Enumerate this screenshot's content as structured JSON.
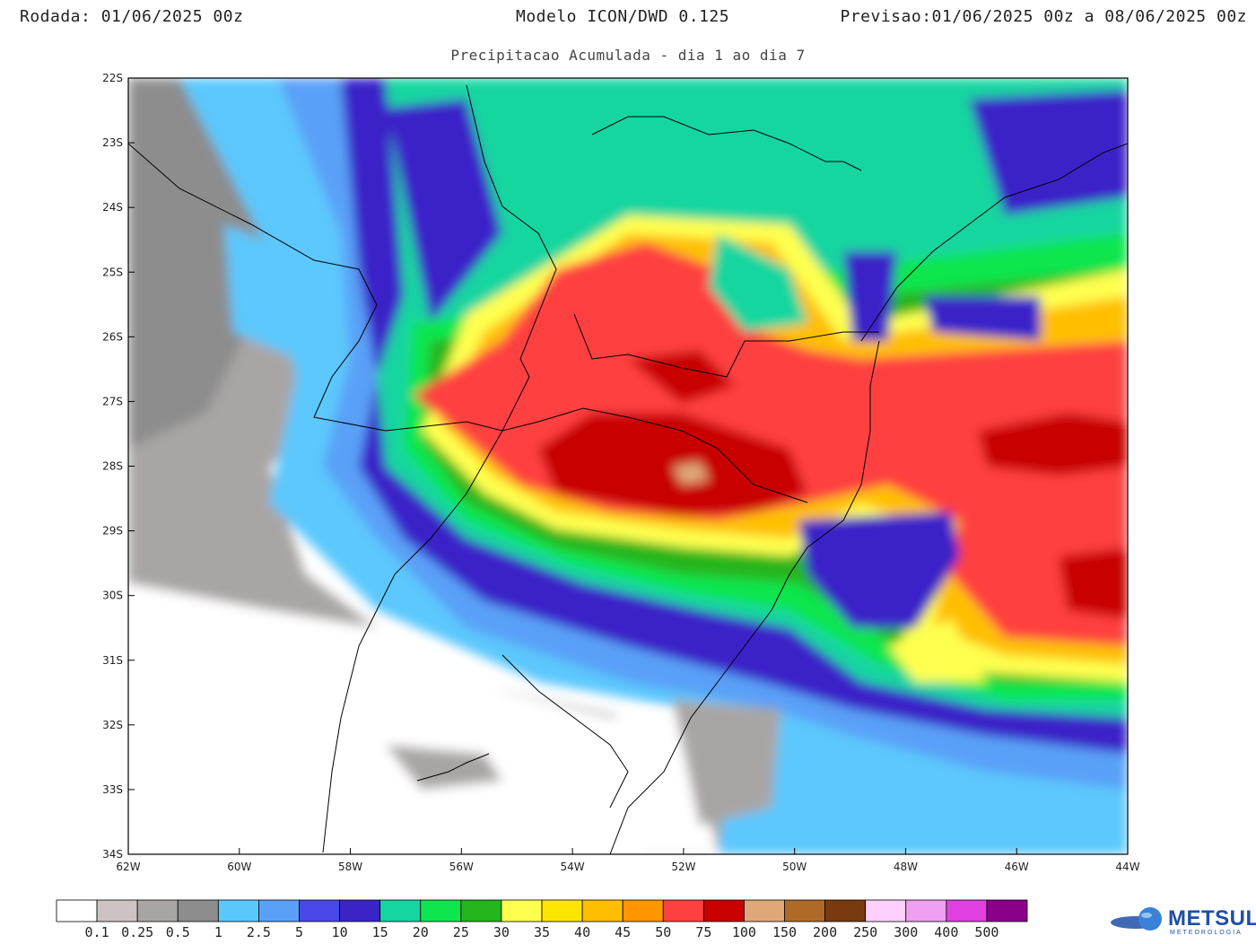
{
  "header": {
    "run_label": "Rodada:",
    "run_value": "01/06/2025 00z",
    "model": "Modelo ICON/DWD 0.125",
    "forecast_label": "Previsao:",
    "forecast_value": "01/06/2025 00z a 08/06/2025 00z",
    "subtitle": "Precipitacao Acumulada - dia 1 ao dia 7"
  },
  "axes": {
    "lat_labels": [
      "22S",
      "23S",
      "24S",
      "25S",
      "26S",
      "27S",
      "28S",
      "29S",
      "30S",
      "31S",
      "32S",
      "33S",
      "34S"
    ],
    "lon_labels": [
      "62W",
      "60W",
      "58W",
      "56W",
      "54W",
      "52W",
      "50W",
      "48W",
      "46W",
      "44W"
    ]
  },
  "legend": {
    "colors": [
      "#ffffff",
      "#cdc3c3",
      "#a9a5a5",
      "#8d8d8d",
      "#5bc8fd",
      "#5aa0f8",
      "#4848e8",
      "#3a24c8",
      "#15d6a0",
      "#0fe64e",
      "#25b51c",
      "#ffff50",
      "#ffe600",
      "#ffbf00",
      "#ff9600",
      "#ff4040",
      "#c80000",
      "#e0a878",
      "#b06a28",
      "#7a3a10",
      "#ffd0ff",
      "#f0a0f0",
      "#e040e0",
      "#8a008a"
    ],
    "labels": [
      "0.1",
      "0.25",
      "0.5",
      "1",
      "2.5",
      "5",
      "10",
      "15",
      "20",
      "25",
      "30",
      "35",
      "40",
      "45",
      "50",
      "75",
      "100",
      "150",
      "200",
      "250",
      "300",
      "400",
      "500"
    ]
  },
  "logo": {
    "name": "METSUL",
    "tagline": "METEOROLOGIA"
  }
}
